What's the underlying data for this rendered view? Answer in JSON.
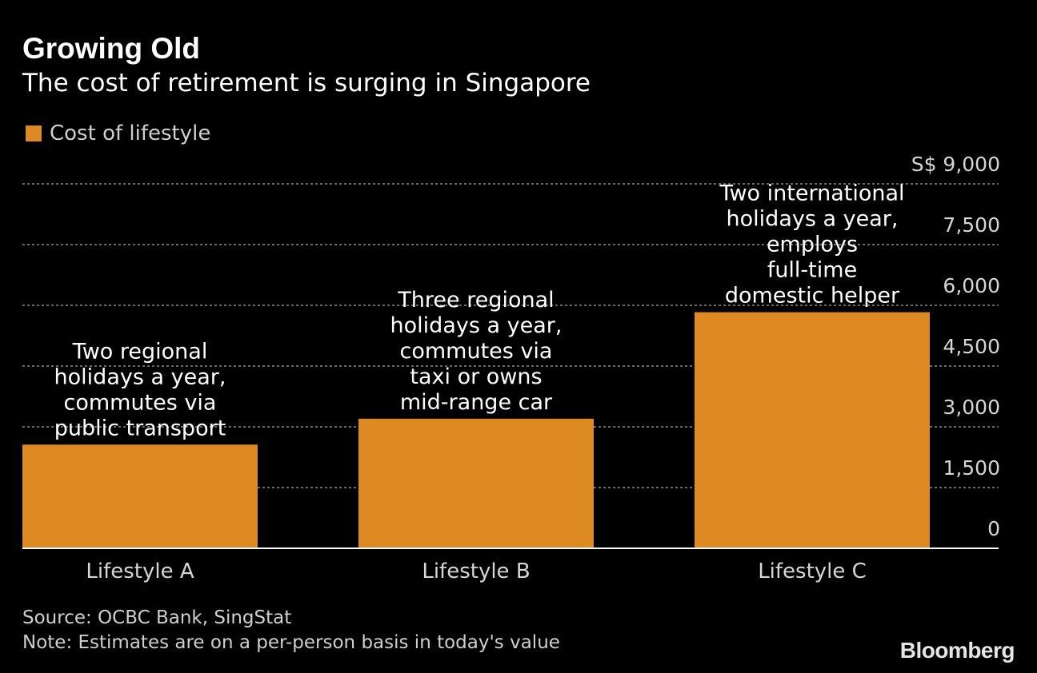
{
  "header": {
    "title": "Growing Old",
    "subtitle": "The cost of retirement is surging in Singapore"
  },
  "legend": {
    "label": "Cost of lifestyle"
  },
  "footer": {
    "source": "Source: OCBC Bank, SingStat",
    "note": "Note: Estimates are on a per-person basis in today's value",
    "brand": "Bloomberg"
  },
  "colors": {
    "bar": "#DD8A23",
    "grid": "#8a8a8a",
    "axis": "#ffffff",
    "background": "#000000"
  },
  "chart_data": {
    "type": "bar",
    "categories": [
      "Lifestyle A",
      "Lifestyle B",
      "Lifestyle C"
    ],
    "series": [
      {
        "name": "Cost of lifestyle",
        "values": [
          2560,
          3200,
          5830
        ]
      }
    ],
    "annotations": [
      [
        "Two regional",
        "holidays a year,",
        "commutes via",
        "public transport"
      ],
      [
        "Three regional",
        "holidays a year,",
        "commutes via",
        "taxi or owns",
        "mid-range car"
      ],
      [
        "Two international",
        "holidays a year,",
        "employs",
        "full-time",
        "domestic helper"
      ]
    ],
    "yticks": [
      "0",
      "1,500",
      "3,000",
      "4,500",
      "6,000",
      "7,500",
      "S$ 9,000"
    ],
    "ytick_values": [
      0,
      1500,
      3000,
      4500,
      6000,
      7500,
      9000
    ],
    "ylim": [
      0,
      9000
    ],
    "grid": true,
    "legend_position": "top-left",
    "y_axis_position": "right"
  }
}
